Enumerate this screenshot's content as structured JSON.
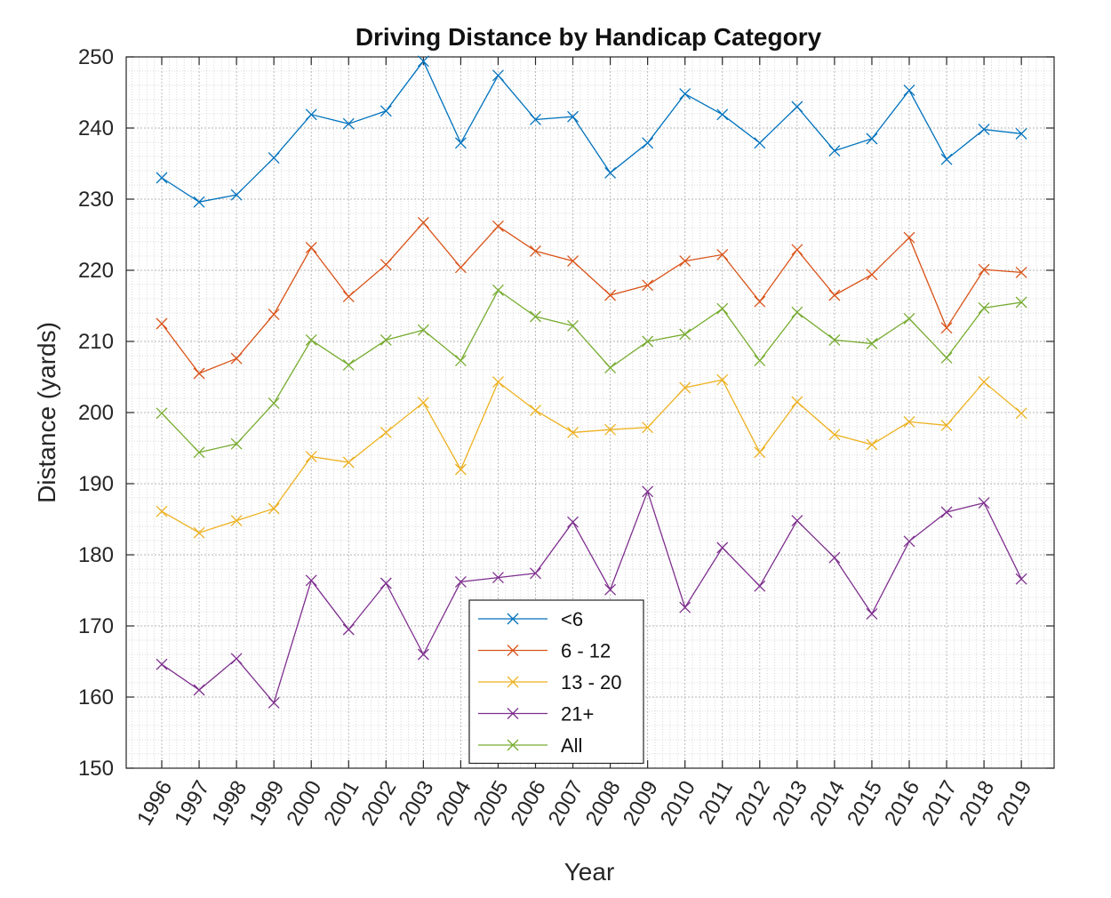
{
  "chart_data": {
    "type": "line",
    "title": "Driving Distance by Handicap Category",
    "xlabel": "Year",
    "ylabel": "Distance (yards)",
    "ylim": [
      150,
      250
    ],
    "yticks": [
      150,
      160,
      170,
      180,
      190,
      200,
      210,
      220,
      230,
      240,
      250
    ],
    "grid": "major-and-minor",
    "legend_position": "bottom-center",
    "marker": "x",
    "categories": [
      "1996",
      "1997",
      "1998",
      "1999",
      "2000",
      "2001",
      "2002",
      "2003",
      "2004",
      "2005",
      "2006",
      "2007",
      "2008",
      "2009",
      "2010",
      "2011",
      "2012",
      "2013",
      "2014",
      "2015",
      "2016",
      "2017",
      "2018",
      "2019"
    ],
    "series": [
      {
        "name": "<6",
        "color": "#0072BD",
        "values": [
          233.0,
          229.6,
          230.6,
          235.8,
          241.9,
          240.6,
          242.4,
          249.4,
          237.9,
          247.4,
          241.2,
          241.6,
          233.7,
          237.9,
          244.8,
          241.9,
          237.9,
          243.0,
          236.8,
          238.5,
          245.3,
          235.6,
          239.8,
          239.2
        ]
      },
      {
        "name": "6 - 12",
        "color": "#D95319",
        "values": [
          212.5,
          205.5,
          207.6,
          213.8,
          223.2,
          216.3,
          220.8,
          226.7,
          220.4,
          226.2,
          222.7,
          221.3,
          216.5,
          217.9,
          221.3,
          222.2,
          215.6,
          222.9,
          216.5,
          219.4,
          224.6,
          211.9,
          220.1,
          219.7
        ]
      },
      {
        "name": "13 - 20",
        "color": "#EDB120",
        "values": [
          186.1,
          183.1,
          184.8,
          186.5,
          193.8,
          193.0,
          197.2,
          201.4,
          192.0,
          204.3,
          200.3,
          197.2,
          197.6,
          197.9,
          203.5,
          204.6,
          194.4,
          201.5,
          196.9,
          195.5,
          198.7,
          198.2,
          204.3,
          199.9
        ]
      },
      {
        "name": "21+",
        "color": "#7E2F8E",
        "values": [
          164.6,
          161.0,
          165.4,
          159.2,
          176.4,
          169.5,
          176.0,
          166.0,
          176.2,
          176.8,
          177.4,
          184.6,
          175.1,
          188.9,
          172.6,
          181.0,
          175.6,
          184.8,
          179.6,
          171.7,
          181.9,
          186.0,
          187.3,
          176.6
        ]
      },
      {
        "name": "All",
        "color": "#77AC30",
        "values": [
          199.9,
          194.4,
          195.6,
          201.3,
          210.2,
          206.7,
          210.2,
          211.6,
          207.3,
          217.2,
          213.5,
          212.2,
          206.3,
          210.0,
          211.0,
          214.6,
          207.3,
          214.1,
          210.2,
          209.7,
          213.2,
          207.7,
          214.7,
          215.5
        ]
      }
    ]
  }
}
